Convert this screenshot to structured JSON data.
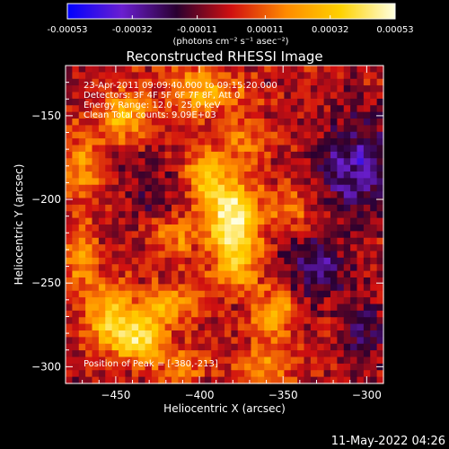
{
  "colorbar": {
    "ticks": [
      "-0.00053",
      "-0.00032",
      "-0.00011",
      "0.00011",
      "0.00032",
      "0.00053"
    ],
    "tick_values": [
      -0.00053,
      -0.00032,
      -0.00011,
      0.00011,
      0.00032,
      0.00053
    ],
    "range": [
      -0.00053,
      0.00053
    ],
    "unit_label": "(photons cm⁻² s⁻¹ asec⁻²)",
    "colormap": [
      "#0000ff",
      "#6a1fd0",
      "#2a0030",
      "#d01010",
      "#ff8a00",
      "#ffd200",
      "#ffffe0"
    ]
  },
  "footer": {
    "timestamp": "11-May-2022 04:26"
  },
  "chart_data": {
    "type": "heatmap",
    "title": "Reconstructed RHESSI Image",
    "xlabel": "Heliocentric X (arcsec)",
    "ylabel": "Heliocentric Y (arcsec)",
    "xlim": [
      -480,
      -290
    ],
    "ylim": [
      -310,
      -120
    ],
    "xticks": [
      -450,
      -400,
      -350,
      -300
    ],
    "yticks": [
      -300,
      -250,
      -200,
      -150
    ],
    "annotations": [
      "23-Apr-2011 09:09:40.000 to 09:15:20.000",
      "Detectors: 3F 4F 5F 6F 7F 8F, Att 0",
      "Energy Range: 12.0 - 25.0 keV",
      "Clean    Total counts: 9.09E+03"
    ],
    "peak_label": "Position of Peak = [-380,-213]",
    "peak": {
      "x": -380,
      "y": -213,
      "value": 0.00053
    },
    "sources": [
      {
        "x": -380,
        "y": -212,
        "amp": 1.0,
        "sx": 11,
        "sy": 15
      },
      {
        "x": -395,
        "y": -185,
        "amp": 0.55,
        "sx": 10,
        "sy": 12
      },
      {
        "x": -378,
        "y": -240,
        "amp": 0.5,
        "sx": 10,
        "sy": 10
      },
      {
        "x": -436,
        "y": -282,
        "amp": 0.8,
        "sx": 11,
        "sy": 10
      },
      {
        "x": -455,
        "y": -270,
        "amp": 0.55,
        "sx": 10,
        "sy": 14
      },
      {
        "x": -420,
        "y": -262,
        "amp": 0.5,
        "sx": 12,
        "sy": 8
      },
      {
        "x": -355,
        "y": -268,
        "amp": 0.6,
        "sx": 9,
        "sy": 10
      },
      {
        "x": -360,
        "y": -300,
        "amp": 0.4,
        "sx": 12,
        "sy": 8
      },
      {
        "x": -398,
        "y": -135,
        "amp": 0.55,
        "sx": 16,
        "sy": 9
      },
      {
        "x": -445,
        "y": -150,
        "amp": 0.6,
        "sx": 10,
        "sy": 10
      },
      {
        "x": -470,
        "y": -180,
        "amp": 0.45,
        "sx": 7,
        "sy": 14
      },
      {
        "x": -470,
        "y": -235,
        "amp": 0.4,
        "sx": 7,
        "sy": 14
      },
      {
        "x": -415,
        "y": -222,
        "amp": 0.35,
        "sx": 10,
        "sy": 9
      },
      {
        "x": -345,
        "y": -205,
        "amp": 0.35,
        "sx": 9,
        "sy": 9
      },
      {
        "x": -372,
        "y": -165,
        "amp": 0.35,
        "sx": 10,
        "sy": 10
      },
      {
        "x": -410,
        "y": -300,
        "amp": 0.3,
        "sx": 10,
        "sy": 8
      },
      {
        "x": -305,
        "y": -180,
        "amp": -0.55,
        "sx": 16,
        "sy": 20
      },
      {
        "x": -330,
        "y": -240,
        "amp": -0.4,
        "sx": 14,
        "sy": 14
      },
      {
        "x": -425,
        "y": -195,
        "amp": -0.25,
        "sx": 10,
        "sy": 12
      },
      {
        "x": -300,
        "y": -280,
        "amp": -0.3,
        "sx": 12,
        "sy": 14
      }
    ]
  }
}
